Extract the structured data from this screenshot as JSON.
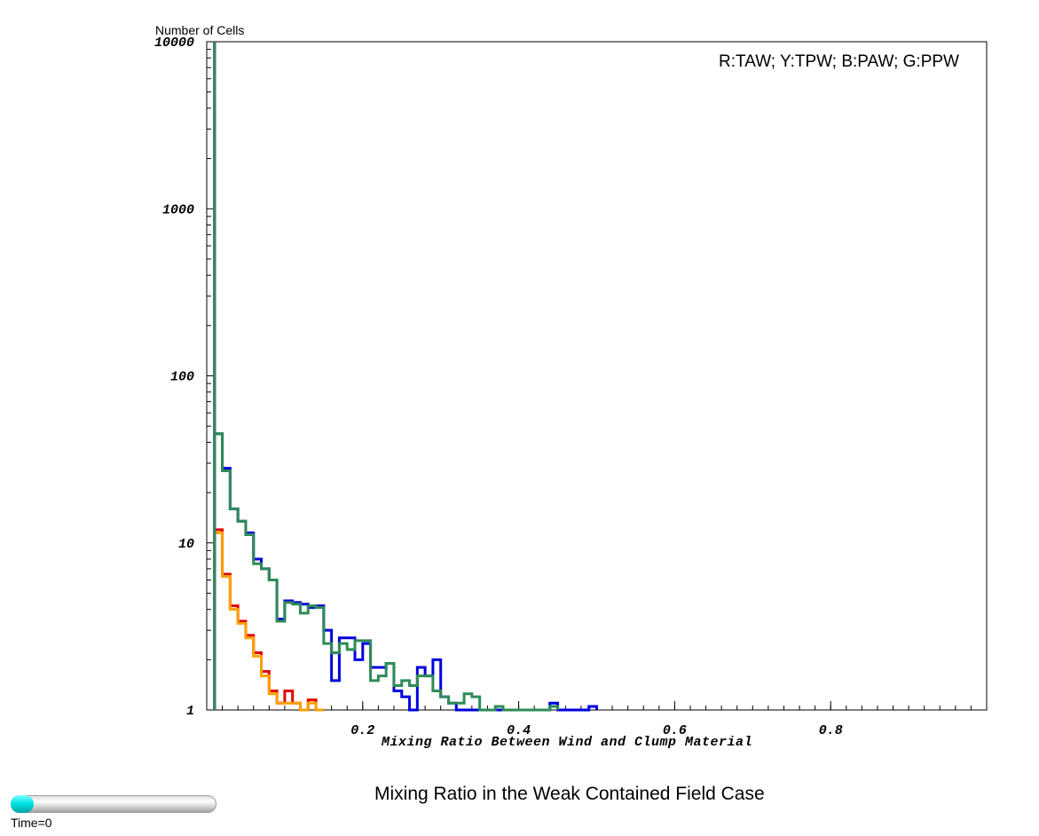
{
  "chart_data": {
    "type": "line",
    "step": true,
    "title": "Mixing Ratio in the Weak Contained Field Case",
    "xlabel": "Mixing Ratio Between Wind and Clump Material",
    "ylabel": "Number of Cells",
    "legend_text": "R:TAW; Y:TPW; B:PAW; G:PPW",
    "legend_position": "top-right",
    "yscale": "log",
    "xlim": [
      0.0,
      1.0
    ],
    "ylim": [
      1,
      10000
    ],
    "x_ticks": [
      0.2,
      0.4,
      0.6,
      0.8
    ],
    "x_tick_labels": [
      "0.2",
      "0.4",
      "0.6",
      "0.8"
    ],
    "y_ticks": [
      1,
      10,
      100,
      1000,
      10000
    ],
    "y_tick_labels": [
      "1",
      "10",
      "100",
      "1000",
      "10000"
    ],
    "grid": false,
    "bin_width": 0.01,
    "series": [
      {
        "name": "TAW",
        "color": "#e00000",
        "x": [
          0.0,
          0.01,
          0.02,
          0.03,
          0.04,
          0.05,
          0.06,
          0.07,
          0.08,
          0.09,
          0.1,
          0.11,
          0.12,
          0.13,
          0.14
        ],
        "values": [
          10000,
          12,
          6.5,
          4.2,
          3.4,
          2.8,
          2.2,
          1.7,
          1.3,
          1.1,
          1.3,
          1.1,
          1.0,
          1.15,
          1.0
        ]
      },
      {
        "name": "TPW",
        "color": "#ffa000",
        "x": [
          0.0,
          0.01,
          0.02,
          0.03,
          0.04,
          0.05,
          0.06,
          0.07,
          0.08,
          0.09,
          0.1,
          0.11,
          0.12,
          0.13,
          0.14
        ],
        "values": [
          10000,
          11.5,
          6.3,
          4.0,
          3.3,
          2.7,
          2.1,
          1.6,
          1.25,
          1.1,
          1.1,
          1.1,
          1.0,
          1.1,
          1.0
        ]
      },
      {
        "name": "PAW",
        "color": "#0000e0",
        "x": [
          0.0,
          0.01,
          0.02,
          0.03,
          0.04,
          0.05,
          0.06,
          0.07,
          0.08,
          0.09,
          0.1,
          0.11,
          0.12,
          0.13,
          0.14,
          0.15,
          0.16,
          0.17,
          0.18,
          0.19,
          0.2,
          0.21,
          0.22,
          0.23,
          0.24,
          0.25,
          0.26,
          0.27,
          0.28,
          0.29,
          0.3,
          0.31,
          0.32,
          0.33,
          0.34,
          0.35,
          0.36,
          0.37,
          0.38,
          0.39,
          0.4,
          0.41,
          0.42,
          0.43,
          0.44,
          0.45,
          0.46,
          0.47,
          0.48,
          0.49
        ],
        "values": [
          10000,
          45,
          28,
          16,
          13.5,
          11.5,
          8,
          7,
          6,
          3.5,
          4.5,
          4.4,
          4.3,
          4.1,
          4.2,
          3.0,
          1.5,
          2.7,
          2.7,
          2.0,
          2.5,
          1.8,
          1.8,
          1.9,
          1.3,
          1.2,
          1.0,
          1.8,
          1.6,
          2.0,
          1.2,
          1.1,
          1.0,
          1.0,
          1.0,
          1.0,
          1.0,
          1.0,
          1.0,
          1.0,
          1.0,
          1.0,
          1.0,
          1.0,
          1.1,
          1.0,
          1.0,
          1.0,
          1.0,
          1.05
        ]
      },
      {
        "name": "PPW",
        "color": "#2e8b57",
        "x": [
          0.0,
          0.01,
          0.02,
          0.03,
          0.04,
          0.05,
          0.06,
          0.07,
          0.08,
          0.09,
          0.1,
          0.11,
          0.12,
          0.13,
          0.14,
          0.15,
          0.16,
          0.17,
          0.18,
          0.19,
          0.2,
          0.21,
          0.22,
          0.23,
          0.24,
          0.25,
          0.26,
          0.27,
          0.28,
          0.29,
          0.3,
          0.31,
          0.32,
          0.33,
          0.34,
          0.35,
          0.36,
          0.37,
          0.38,
          0.39,
          0.4,
          0.41,
          0.42,
          0.43,
          0.44
        ],
        "values": [
          10000,
          45,
          27,
          16,
          13.5,
          11.2,
          7.5,
          7,
          6,
          3.4,
          4.4,
          4.3,
          3.8,
          4.2,
          4.1,
          2.5,
          2.2,
          2.5,
          2.3,
          2.6,
          2.6,
          1.5,
          1.6,
          1.9,
          1.4,
          1.5,
          1.4,
          1.6,
          1.6,
          1.3,
          1.2,
          1.1,
          1.1,
          1.25,
          1.2,
          1.0,
          1.0,
          1.05,
          1.0,
          1.0,
          1.0,
          1.0,
          1.0,
          1.0,
          1.05
        ]
      }
    ]
  },
  "time_label": "Time=0"
}
